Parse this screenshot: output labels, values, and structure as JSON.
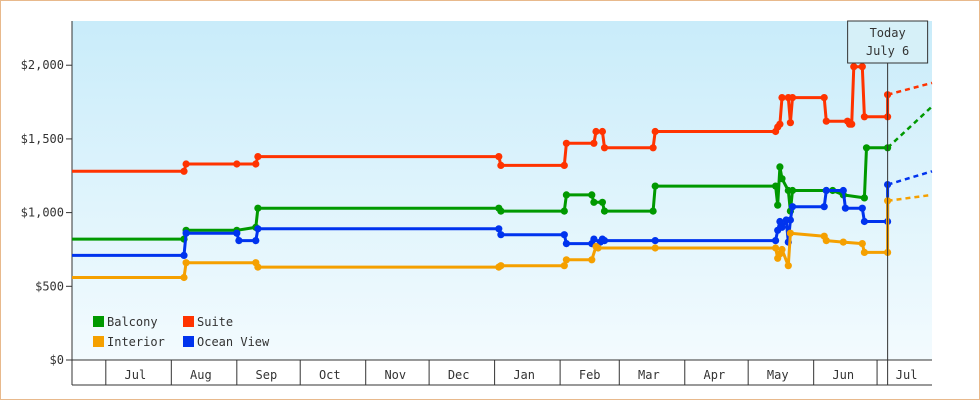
{
  "chart_data": {
    "type": "line",
    "step": true,
    "x_unit": "date",
    "x_range": [
      "2012-06-15",
      "2013-07-27"
    ],
    "ylim": [
      0,
      2300
    ],
    "yticks": [
      0,
      500,
      1000,
      1500,
      2000
    ],
    "ytick_labels": [
      "$0",
      "$500",
      "$1,000",
      "$1,500",
      "$2,000"
    ],
    "month_labels": [
      {
        "label": "Jul",
        "date": "2012-07-15"
      },
      {
        "label": "Aug",
        "date": "2012-08-15"
      },
      {
        "label": "Sep",
        "date": "2012-09-15"
      },
      {
        "label": "Oct",
        "date": "2012-10-15"
      },
      {
        "label": "Nov",
        "date": "2012-11-15"
      },
      {
        "label": "Dec",
        "date": "2012-12-15"
      },
      {
        "label": "Jan",
        "date": "2013-01-15"
      },
      {
        "label": "Feb",
        "date": "2013-02-15"
      },
      {
        "label": "Mar",
        "date": "2013-03-15"
      },
      {
        "label": "Apr",
        "date": "2013-04-15"
      },
      {
        "label": "May",
        "date": "2013-05-15"
      },
      {
        "label": "Jun",
        "date": "2013-06-15"
      },
      {
        "label": "Jul",
        "date": "2013-07-15"
      }
    ],
    "month_boundaries": [
      "2012-07-01",
      "2012-08-01",
      "2012-09-01",
      "2012-10-01",
      "2012-11-01",
      "2012-12-01",
      "2013-01-01",
      "2013-02-01",
      "2013-03-01",
      "2013-04-01",
      "2013-05-01",
      "2013-06-01",
      "2013-07-01"
    ],
    "today": {
      "line1": "Today",
      "line2": "July 6",
      "date": "2013-07-06"
    },
    "gradient": {
      "top": "#c9ecfa",
      "bottom": "#f3fbfe"
    },
    "grid": false,
    "legend_position": "bottom-left",
    "series": [
      {
        "name": "Suite",
        "color": "#ff3300",
        "points": [
          [
            "2012-06-15",
            1280
          ],
          [
            "2012-08-07",
            1280
          ],
          [
            "2012-08-08",
            1330
          ],
          [
            "2012-09-01",
            1330
          ],
          [
            "2012-09-10",
            1330
          ],
          [
            "2012-09-11",
            1380
          ],
          [
            "2013-01-03",
            1380
          ],
          [
            "2013-01-04",
            1320
          ],
          [
            "2013-02-03",
            1320
          ],
          [
            "2013-02-04",
            1470
          ],
          [
            "2013-02-17",
            1470
          ],
          [
            "2013-02-18",
            1550
          ],
          [
            "2013-02-21",
            1550
          ],
          [
            "2013-02-22",
            1440
          ],
          [
            "2013-03-17",
            1440
          ],
          [
            "2013-03-18",
            1550
          ],
          [
            "2013-05-14",
            1550
          ],
          [
            "2013-05-15",
            1580
          ],
          [
            "2013-05-16",
            1600
          ],
          [
            "2013-05-17",
            1780
          ],
          [
            "2013-05-20",
            1780
          ],
          [
            "2013-05-21",
            1610
          ],
          [
            "2013-05-22",
            1780
          ],
          [
            "2013-06-06",
            1780
          ],
          [
            "2013-06-07",
            1620
          ],
          [
            "2013-06-17",
            1620
          ],
          [
            "2013-06-18",
            1600
          ],
          [
            "2013-06-19",
            1600
          ],
          [
            "2013-06-20",
            1990
          ],
          [
            "2013-06-24",
            1990
          ],
          [
            "2013-06-25",
            1650
          ],
          [
            "2013-07-06",
            1650
          ],
          [
            "2013-07-06",
            1800
          ]
        ],
        "projection": [
          [
            "2013-07-06",
            1800
          ],
          [
            "2013-07-27",
            1880
          ]
        ]
      },
      {
        "name": "Balcony",
        "color": "#009900",
        "points": [
          [
            "2012-06-15",
            820
          ],
          [
            "2012-08-07",
            820
          ],
          [
            "2012-08-08",
            880
          ],
          [
            "2012-09-01",
            880
          ],
          [
            "2012-09-10",
            900
          ],
          [
            "2012-09-11",
            1030
          ],
          [
            "2013-01-03",
            1030
          ],
          [
            "2013-01-04",
            1010
          ],
          [
            "2013-02-03",
            1010
          ],
          [
            "2013-02-04",
            1120
          ],
          [
            "2013-02-16",
            1120
          ],
          [
            "2013-02-17",
            1070
          ],
          [
            "2013-02-21",
            1070
          ],
          [
            "2013-02-22",
            1010
          ],
          [
            "2013-03-17",
            1010
          ],
          [
            "2013-03-18",
            1180
          ],
          [
            "2013-05-14",
            1180
          ],
          [
            "2013-05-15",
            1050
          ],
          [
            "2013-05-16",
            1310
          ],
          [
            "2013-05-17",
            1230
          ],
          [
            "2013-05-20",
            1150
          ],
          [
            "2013-05-21",
            1010
          ],
          [
            "2013-05-22",
            1150
          ],
          [
            "2013-06-07",
            1150
          ],
          [
            "2013-06-10",
            1150
          ],
          [
            "2013-06-15",
            1120
          ],
          [
            "2013-06-25",
            1100
          ],
          [
            "2013-06-26",
            1440
          ],
          [
            "2013-07-06",
            1440
          ]
        ],
        "projection": [
          [
            "2013-07-06",
            1440
          ],
          [
            "2013-07-27",
            1720
          ]
        ]
      },
      {
        "name": "Ocean View",
        "color": "#0033ee",
        "points": [
          [
            "2012-06-15",
            710
          ],
          [
            "2012-08-07",
            710
          ],
          [
            "2012-08-08",
            860
          ],
          [
            "2012-09-01",
            860
          ],
          [
            "2012-09-02",
            810
          ],
          [
            "2012-09-10",
            810
          ],
          [
            "2012-09-11",
            890
          ],
          [
            "2013-01-03",
            890
          ],
          [
            "2013-01-04",
            850
          ],
          [
            "2013-02-03",
            850
          ],
          [
            "2013-02-04",
            790
          ],
          [
            "2013-02-16",
            790
          ],
          [
            "2013-02-17",
            820
          ],
          [
            "2013-02-20",
            800
          ],
          [
            "2013-02-21",
            820
          ],
          [
            "2013-02-22",
            810
          ],
          [
            "2013-03-18",
            810
          ],
          [
            "2013-05-14",
            810
          ],
          [
            "2013-05-15",
            880
          ],
          [
            "2013-05-16",
            940
          ],
          [
            "2013-05-17",
            900
          ],
          [
            "2013-05-19",
            950
          ],
          [
            "2013-05-20",
            800
          ],
          [
            "2013-05-21",
            950
          ],
          [
            "2013-05-22",
            1040
          ],
          [
            "2013-06-06",
            1040
          ],
          [
            "2013-06-07",
            1150
          ],
          [
            "2013-06-15",
            1150
          ],
          [
            "2013-06-16",
            1030
          ],
          [
            "2013-06-24",
            1030
          ],
          [
            "2013-06-25",
            940
          ],
          [
            "2013-07-06",
            940
          ],
          [
            "2013-07-06",
            1190
          ]
        ],
        "projection": [
          [
            "2013-07-06",
            1190
          ],
          [
            "2013-07-27",
            1280
          ]
        ]
      },
      {
        "name": "Interior",
        "color": "#f5a000",
        "points": [
          [
            "2012-06-15",
            560
          ],
          [
            "2012-08-07",
            560
          ],
          [
            "2012-08-08",
            660
          ],
          [
            "2012-09-10",
            660
          ],
          [
            "2012-09-11",
            630
          ],
          [
            "2013-01-03",
            630
          ],
          [
            "2013-01-04",
            640
          ],
          [
            "2013-02-03",
            640
          ],
          [
            "2013-02-04",
            680
          ],
          [
            "2013-02-16",
            680
          ],
          [
            "2013-02-18",
            770
          ],
          [
            "2013-02-19",
            760
          ],
          [
            "2013-03-18",
            760
          ],
          [
            "2013-05-14",
            760
          ],
          [
            "2013-05-15",
            690
          ],
          [
            "2013-05-16",
            720
          ],
          [
            "2013-05-17",
            750
          ],
          [
            "2013-05-20",
            640
          ],
          [
            "2013-05-21",
            860
          ],
          [
            "2013-06-06",
            840
          ],
          [
            "2013-06-07",
            810
          ],
          [
            "2013-06-15",
            800
          ],
          [
            "2013-06-24",
            790
          ],
          [
            "2013-06-25",
            730
          ],
          [
            "2013-07-06",
            730
          ],
          [
            "2013-07-06",
            1080
          ]
        ],
        "projection": [
          [
            "2013-07-06",
            1080
          ],
          [
            "2013-07-27",
            1120
          ]
        ]
      }
    ],
    "legend": [
      {
        "name": "Balcony",
        "color": "#009900",
        "col": 0,
        "row": 0
      },
      {
        "name": "Suite",
        "color": "#ff3300",
        "col": 1,
        "row": 0
      },
      {
        "name": "Interior",
        "color": "#f5a000",
        "col": 0,
        "row": 1
      },
      {
        "name": "Ocean View",
        "color": "#0033ee",
        "col": 1,
        "row": 1
      }
    ]
  }
}
